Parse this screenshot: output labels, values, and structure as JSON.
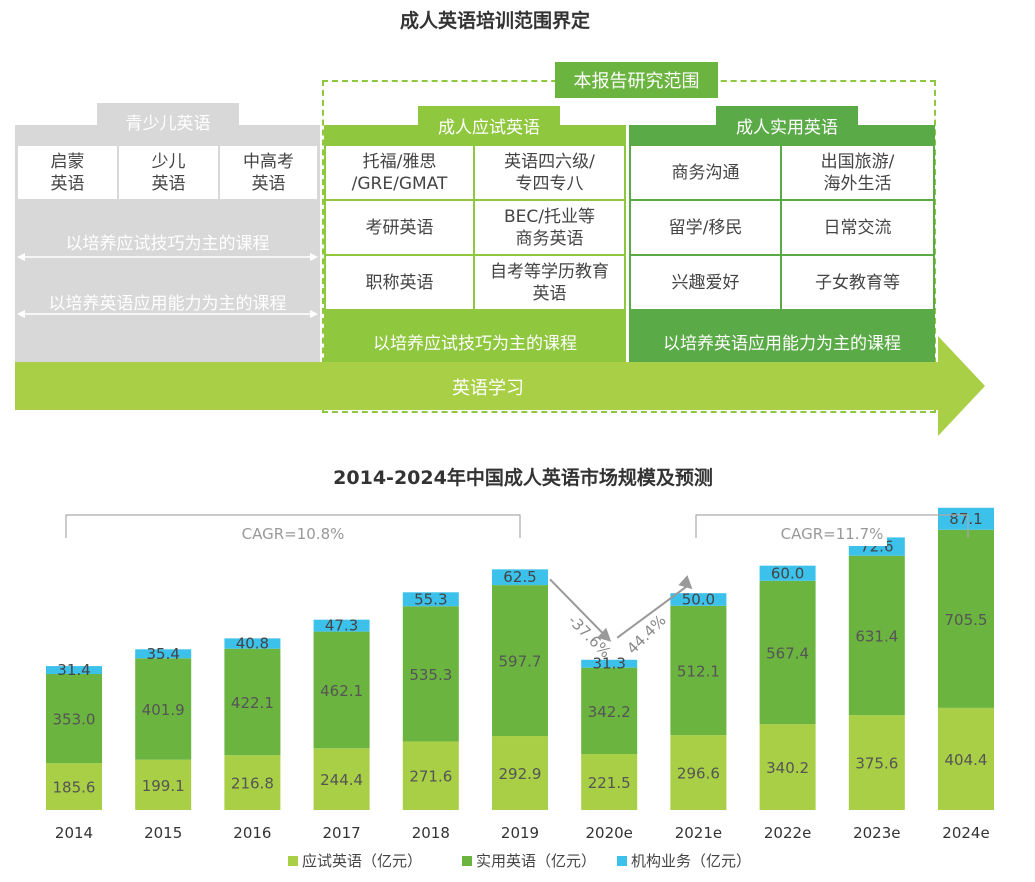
{
  "scope_title": "成人英语培训范围界定",
  "scope": {
    "report_scope_label": "本报告研究范围",
    "youth": {
      "header": "青少儿英语",
      "items": [
        "启蒙\n英语",
        "少儿\n英语",
        "中高考\n英语"
      ],
      "line1": "以培养应试技巧为主的课程",
      "line2": "以培养英语应用能力为主的课程"
    },
    "exam": {
      "header": "成人应试英语",
      "items": [
        "托福/雅思\n/GRE/GMAT",
        "英语四六级/\n专四专八",
        "考研英语",
        "BEC/托业等\n商务英语",
        "职称英语",
        "自考等学历教育\n英语"
      ],
      "footer": "以培养应试技巧为主的课程"
    },
    "practical": {
      "header": "成人实用英语",
      "items": [
        "商务沟通",
        "出国旅游/\n海外生活",
        "留学/移民",
        "日常交流",
        "兴趣爱好",
        "子女教育等"
      ],
      "footer": "以培养英语应用能力为主的课程"
    },
    "arrow_label": "英语学习"
  },
  "chart_title": "2014-2024年中国成人英语市场规模及预测",
  "colors": {
    "exam": "#a8cf45",
    "practical": "#6bb43f",
    "institution": "#3cc1eb",
    "grey": "#d8d8d8",
    "dark_green": "#5aaa47",
    "light_green": "#8fc73e"
  },
  "chart_data": {
    "type": "bar",
    "stacked": true,
    "categories": [
      "2014",
      "2015",
      "2016",
      "2017",
      "2018",
      "2019",
      "2020e",
      "2021e",
      "2022e",
      "2023e",
      "2024e"
    ],
    "series": [
      {
        "name": "应试英语（亿元）",
        "values": [
          185.6,
          199.1,
          216.8,
          244.4,
          271.6,
          292.9,
          221.5,
          296.6,
          340.2,
          375.6,
          404.4
        ]
      },
      {
        "name": "实用英语（亿元）",
        "values": [
          353.0,
          401.9,
          422.1,
          462.1,
          535.3,
          597.7,
          342.2,
          512.1,
          567.4,
          631.4,
          705.5
        ]
      },
      {
        "name": "机构业务（亿元）",
        "values": [
          31.4,
          35.4,
          40.8,
          47.3,
          55.3,
          62.5,
          31.3,
          50.0,
          60.0,
          72.6,
          87.1
        ]
      }
    ],
    "annotations": {
      "cagr_left": "CAGR=10.8%",
      "cagr_right": "CAGR=11.7%",
      "drop": "-37.6%",
      "rise": "44.4%"
    },
    "legend_position": "bottom"
  }
}
